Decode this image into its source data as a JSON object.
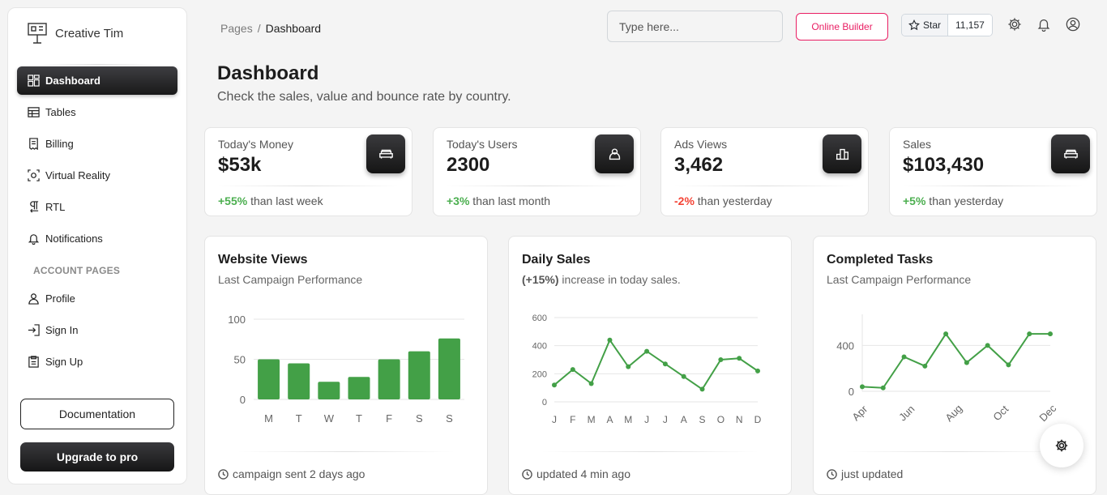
{
  "brand": {
    "name": "Creative Tim"
  },
  "sidebar": {
    "items": [
      {
        "label": "Dashboard",
        "icon": "dashboard-icon",
        "active": true
      },
      {
        "label": "Tables",
        "icon": "table-icon"
      },
      {
        "label": "Billing",
        "icon": "receipt-icon"
      },
      {
        "label": "Virtual Reality",
        "icon": "vr-icon"
      },
      {
        "label": "RTL",
        "icon": "rtl-icon"
      },
      {
        "label": "Notifications",
        "icon": "bell-icon"
      }
    ],
    "section_title": "ACCOUNT PAGES",
    "account_items": [
      {
        "label": "Profile",
        "icon": "user-icon"
      },
      {
        "label": "Sign In",
        "icon": "login-icon"
      },
      {
        "label": "Sign Up",
        "icon": "clipboard-icon"
      }
    ],
    "documentation_label": "Documentation",
    "upgrade_label": "Upgrade to pro"
  },
  "breadcrumb": {
    "parent": "Pages",
    "separator": "/",
    "current": "Dashboard"
  },
  "header": {
    "search_placeholder": "Type here...",
    "builder_label": "Online Builder",
    "star_label": "Star",
    "star_count": "11,157"
  },
  "page": {
    "title": "Dashboard",
    "subtitle": "Check the sales, value and bounce rate by country."
  },
  "stats": [
    {
      "label": "Today's Money",
      "value": "$53k",
      "change": "+55%",
      "change_text": " than last week",
      "trend": "positive",
      "icon": "weekend-icon"
    },
    {
      "label": "Today's Users",
      "value": "2300",
      "change": "+3%",
      "change_text": " than last month",
      "trend": "positive",
      "icon": "person-icon"
    },
    {
      "label": "Ads Views",
      "value": "3,462",
      "change": "-2%",
      "change_text": " than yesterday",
      "trend": "negative",
      "icon": "leaderboard-icon"
    },
    {
      "label": "Sales",
      "value": "$103,430",
      "change": "+5%",
      "change_text": " than yesterday",
      "trend": "positive",
      "icon": "weekend-icon"
    }
  ],
  "charts": [
    {
      "title": "Website Views",
      "subtitle": "Last Campaign Performance",
      "footer": "campaign sent 2 days ago"
    },
    {
      "title": "Daily Sales",
      "subtitle_bold": "(+15%)",
      "subtitle": " increase in today sales.",
      "footer": "updated 4 min ago"
    },
    {
      "title": "Completed Tasks",
      "subtitle": "Last Campaign Performance",
      "footer": "just updated"
    }
  ],
  "colors": {
    "accent": "#43a047",
    "positive": "#4caf50",
    "negative": "#f44335",
    "builder": "#e91e63"
  },
  "chart_data": [
    {
      "type": "bar",
      "categories": [
        "M",
        "T",
        "W",
        "T",
        "F",
        "S",
        "S"
      ],
      "values": [
        50,
        45,
        22,
        28,
        50,
        60,
        76
      ],
      "yticks": [
        0,
        50,
        100
      ],
      "ylim": [
        0,
        100
      ],
      "grid": true
    },
    {
      "type": "line",
      "categories": [
        "J",
        "F",
        "M",
        "A",
        "M",
        "J",
        "J",
        "A",
        "S",
        "O",
        "N",
        "D"
      ],
      "values": [
        120,
        230,
        130,
        440,
        250,
        360,
        270,
        180,
        90,
        300,
        310,
        220
      ],
      "yticks": [
        0,
        200,
        400,
        600
      ],
      "ylim": [
        0,
        600
      ],
      "grid": true
    },
    {
      "type": "line",
      "categories": [
        "Apr",
        "Jun",
        "Aug",
        "Oct",
        "Dec"
      ],
      "x": [
        0,
        1,
        2,
        3,
        4,
        5,
        6,
        7,
        8,
        9
      ],
      "values": [
        40,
        30,
        300,
        220,
        500,
        250,
        400,
        230,
        500,
        500
      ],
      "yticks": [
        0,
        400
      ],
      "ylim": [
        0,
        600
      ],
      "grid": true
    }
  ]
}
